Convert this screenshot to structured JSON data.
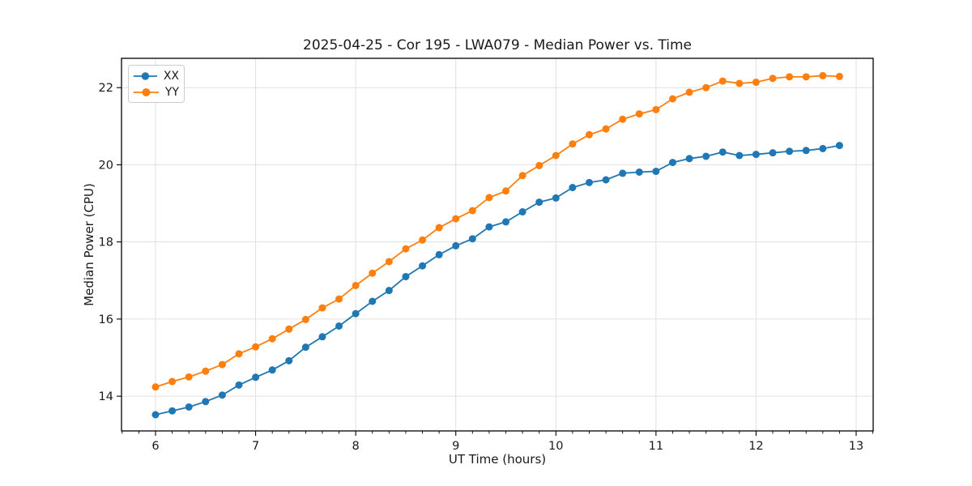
{
  "chart_data": {
    "type": "line",
    "title": "2025-04-25 - Cor 195 - LWA079 - Median Power vs. Time",
    "xlabel": "UT Time (hours)",
    "ylabel": "Median Power (CPU)",
    "x": [
      6.0,
      6.1667,
      6.3333,
      6.5,
      6.6667,
      6.8333,
      7.0,
      7.1667,
      7.3333,
      7.5,
      7.6667,
      7.8333,
      8.0,
      8.1667,
      8.3333,
      8.5,
      8.6667,
      8.8333,
      9.0,
      9.1667,
      9.3333,
      9.5,
      9.6667,
      9.8333,
      10.0,
      10.1667,
      10.3333,
      10.5,
      10.6667,
      10.8333,
      11.0,
      11.1667,
      11.3333,
      11.5,
      11.6667,
      11.8333,
      12.0,
      12.1667,
      12.3333,
      12.5,
      12.6667,
      12.8333
    ],
    "series": [
      {
        "name": "XX",
        "color": "#1f77b4",
        "values": [
          13.52,
          13.62,
          13.72,
          13.86,
          14.03,
          14.29,
          14.49,
          14.68,
          14.92,
          15.27,
          15.54,
          15.82,
          16.14,
          16.46,
          16.74,
          17.1,
          17.38,
          17.67,
          17.9,
          18.08,
          18.39,
          18.52,
          18.78,
          19.03,
          19.14,
          19.41,
          19.54,
          19.61,
          19.78,
          19.81,
          19.83,
          20.06,
          20.16,
          20.22,
          20.33,
          20.24,
          20.27,
          20.31,
          20.35,
          20.37,
          20.42,
          20.5
        ]
      },
      {
        "name": "YY",
        "color": "#ff7f0e",
        "values": [
          14.24,
          14.38,
          14.5,
          14.65,
          14.82,
          15.1,
          15.28,
          15.49,
          15.74,
          15.99,
          16.29,
          16.52,
          16.87,
          17.19,
          17.49,
          17.82,
          18.05,
          18.37,
          18.6,
          18.81,
          19.15,
          19.32,
          19.72,
          19.98,
          20.24,
          20.54,
          20.78,
          20.93,
          21.18,
          21.32,
          21.43,
          21.71,
          21.88,
          22.0,
          22.17,
          22.11,
          22.14,
          22.24,
          22.28,
          22.28,
          22.31,
          22.29
        ]
      }
    ],
    "xlim": [
      5.66,
      13.17
    ],
    "ylim": [
      13.1,
      22.76
    ],
    "xticks": [
      6,
      7,
      8,
      9,
      10,
      11,
      12,
      13
    ],
    "yticks": [
      14,
      16,
      18,
      20,
      22
    ],
    "x_minor_step": 0.166667,
    "grid": true,
    "legend_position": "upper-left",
    "marker": "circle",
    "marker_radius": 4.5,
    "line_width": 1.8,
    "grid_color": "#e0e0e0",
    "spine_color": "#000000",
    "tick_color": "#000000",
    "text_color": "#1a1a1a",
    "background": "#ffffff"
  }
}
